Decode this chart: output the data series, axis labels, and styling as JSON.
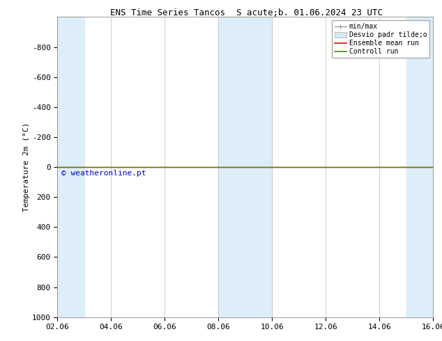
{
  "title_left": "ENS Time Series Tancos",
  "title_right": "S acute;b. 01.06.2024 23 UTC",
  "ylabel": "Temperature 2m (°C)",
  "copyright": "© weatheronline.pt",
  "ylim_top": -1000,
  "ylim_bottom": 1000,
  "yticks": [
    -800,
    -600,
    -400,
    -200,
    0,
    200,
    400,
    600,
    800,
    1000
  ],
  "xtick_labels": [
    "02.06",
    "04.06",
    "06.06",
    "08.06",
    "10.06",
    "12.06",
    "14.06",
    "16.06"
  ],
  "xtick_positions": [
    0,
    2,
    4,
    6,
    8,
    10,
    12,
    14
  ],
  "x_total": 14,
  "shaded_ranges": [
    [
      0,
      1
    ],
    [
      6,
      8
    ],
    [
      13,
      14
    ]
  ],
  "shaded_color": "#ddeef8",
  "green_line_color": "#448800",
  "red_line_color": "#ff0000",
  "background_color": "#ffffff",
  "legend_entries": [
    "min/max",
    "Desvio padr tilde;o",
    "Ensemble mean run",
    "Controll run"
  ],
  "font_size": 8,
  "title_font_size": 9,
  "axis_font_size": 8
}
